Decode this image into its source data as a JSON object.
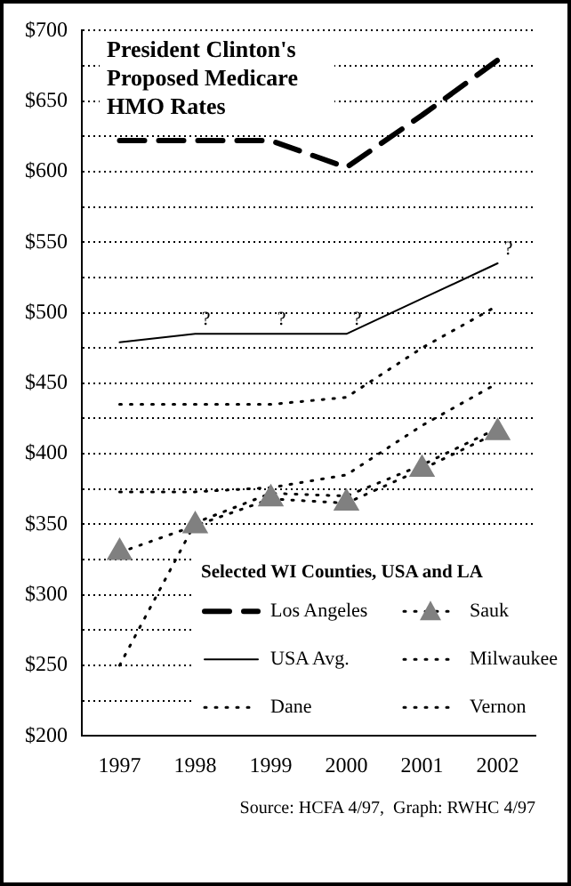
{
  "chart_data": {
    "type": "line",
    "title": "President Clinton's Proposed Medicare HMO Rates",
    "legend_title": "Selected WI Counties, USA and LA",
    "categories": [
      "1997",
      "1998",
      "1999",
      "2000",
      "2001",
      "2002"
    ],
    "series": [
      {
        "name": "Los Angeles",
        "color": "#000000",
        "line_style": "dashed",
        "marker": "none",
        "values": [
          622,
          622,
          622,
          603,
          640,
          679
        ]
      },
      {
        "name": "USA Avg.",
        "color": "#000000",
        "line_style": "solid",
        "marker": "none",
        "values": [
          479,
          485,
          485,
          485,
          510,
          535
        ]
      },
      {
        "name": "Dane",
        "color": "#000000",
        "line_style": "dotted",
        "marker": "none",
        "values": [
          435,
          435,
          435,
          440,
          475,
          505
        ]
      },
      {
        "name": "Sauk",
        "color": "#808080",
        "line_style": "dotted",
        "marker": "triangle",
        "values": [
          330,
          349,
          368,
          365,
          389,
          415
        ]
      },
      {
        "name": "Milwaukee",
        "color": "#000000",
        "line_style": "dotted",
        "marker": "none",
        "values": [
          373,
          373,
          376,
          385,
          420,
          450
        ]
      },
      {
        "name": "Vernon",
        "color": "#000000",
        "line_style": "dotted",
        "marker": "none",
        "values": [
          250,
          351,
          372,
          370,
          392,
          418
        ]
      }
    ],
    "ylim": [
      200,
      700
    ],
    "yticks": [
      {
        "value": 200,
        "label": "$200"
      },
      {
        "value": 225,
        "label": null
      },
      {
        "value": 250,
        "label": "$250"
      },
      {
        "value": 275,
        "label": null
      },
      {
        "value": 300,
        "label": "$300"
      },
      {
        "value": 325,
        "label": null
      },
      {
        "value": 350,
        "label": "$350"
      },
      {
        "value": 375,
        "label": null
      },
      {
        "value": 400,
        "label": "$400"
      },
      {
        "value": 425,
        "label": null
      },
      {
        "value": 450,
        "label": "$450"
      },
      {
        "value": 475,
        "label": null
      },
      {
        "value": 500,
        "label": "$500"
      },
      {
        "value": 525,
        "label": null
      },
      {
        "value": 550,
        "label": "$550"
      },
      {
        "value": 575,
        "label": null
      },
      {
        "value": 600,
        "label": "$600"
      },
      {
        "value": 625,
        "label": null
      },
      {
        "value": 650,
        "label": "$650"
      },
      {
        "value": 675,
        "label": null
      },
      {
        "value": 700,
        "label": "$700"
      }
    ],
    "grid": "y",
    "legend": "bottom right",
    "annotations": [
      {
        "text": "?",
        "x": "1998",
        "y": 485
      },
      {
        "text": "?",
        "x": "1999",
        "y": 485
      },
      {
        "text": "?",
        "x": "2000",
        "y": 485
      },
      {
        "text": "?",
        "x": "2002",
        "y": 535
      },
      "Source: HCFA 4/97,  Graph: RWHC 4/97"
    ]
  }
}
